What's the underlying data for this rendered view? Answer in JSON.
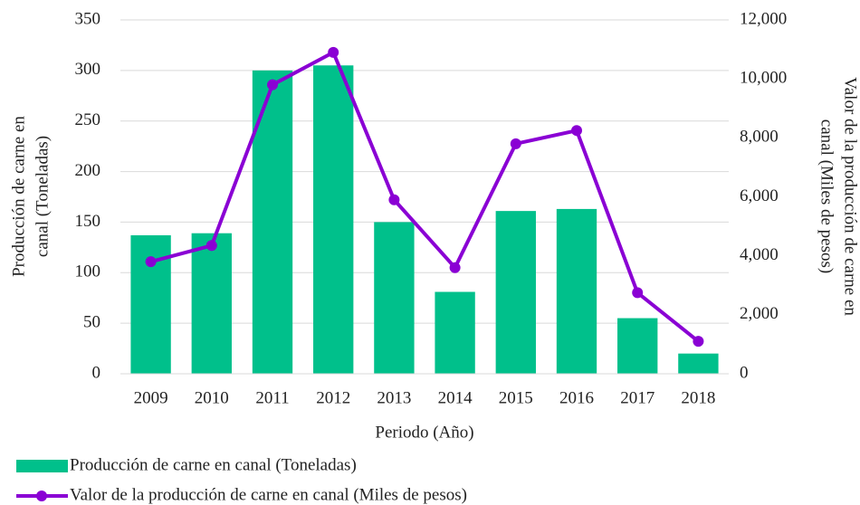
{
  "chart_data": {
    "type": "bar-line",
    "categories": [
      "2009",
      "2010",
      "2011",
      "2012",
      "2013",
      "2014",
      "2015",
      "2016",
      "2017",
      "2018"
    ],
    "series": [
      {
        "name": "Producción de carne en canal  (Toneladas)",
        "type": "bar",
        "color": "#00c08b",
        "values": [
          137,
          139,
          300,
          305,
          150,
          81,
          161,
          163,
          55,
          20
        ]
      },
      {
        "name": "Valor de la producción de carne en canal  (Miles de pesos)",
        "type": "line",
        "axis": "y2",
        "color": "#8a00d4",
        "values": [
          3800,
          4350,
          9800,
          10900,
          5900,
          3600,
          7800,
          8250,
          2750,
          1100
        ]
      }
    ],
    "xlabel": "Periodo (Año)",
    "ylabel": [
      "Producción de carne en",
      "canal  (Toneladas)"
    ],
    "y2label": [
      "Valor de la producción de carne en",
      "canal  (Miles de pesos)"
    ],
    "ylim": [
      0,
      350
    ],
    "yticks": [
      0,
      50,
      100,
      150,
      200,
      250,
      300,
      350
    ],
    "y2lim": [
      0,
      12000
    ],
    "y2ticks": [
      0,
      {
        "value": 2000,
        "label": "2,000"
      },
      {
        "value": 4000,
        "label": "4,000"
      },
      {
        "value": 6000,
        "label": "6,000"
      },
      {
        "value": 8000,
        "label": "8,000"
      },
      {
        "value": 10000,
        "label": "10,000"
      },
      {
        "value": 12000,
        "label": "12,000"
      }
    ],
    "grid": true,
    "legend": "bottom-left"
  }
}
